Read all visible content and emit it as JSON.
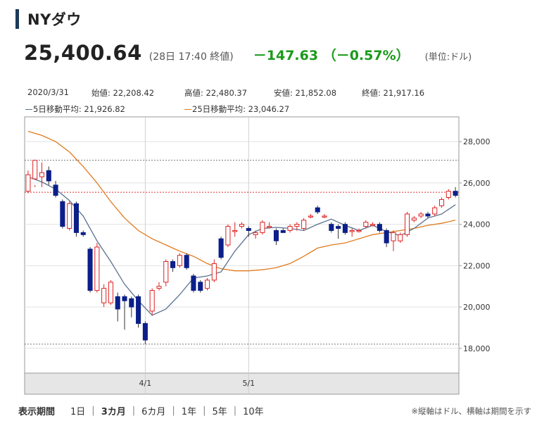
{
  "header": {
    "title": "NYダウ"
  },
  "quote": {
    "price": "25,400.64",
    "date_label": "(28日 17:40 終値)",
    "change": "－147.63 （－0.57%）",
    "unit": "(単位:ドル)"
  },
  "info": {
    "date": "2020/3/31",
    "open": "始値: 22,208.42",
    "high": "高値: 22,480.37",
    "low": "安値: 21,852.08",
    "close": "終値: 21,917.16",
    "ma5": "5日移動平均: 21,926.82",
    "ma25": "25日移動平均: 23,046.27"
  },
  "period": {
    "label": "表示期間",
    "options": [
      "1日",
      "3カ月",
      "6カ月",
      "1年",
      "5年",
      "10年"
    ],
    "selected_index": 1
  },
  "note": "※縦軸はドル、横軸は期間を示す",
  "colors": {
    "up": "#dd2222",
    "down": "#0b1f8a",
    "ma5": "#5b7290",
    "ma25": "#e07a1e",
    "change": "#1a9a1a"
  },
  "chart_data": {
    "type": "candlestick",
    "x_ticks": [
      "4/1",
      "5/1"
    ],
    "y_ticks": [
      "18,000",
      "20,000",
      "22,000",
      "24,000",
      "26,000",
      "28,000"
    ],
    "ylim": [
      16800,
      29200
    ],
    "ref_lines": [
      27100,
      25550,
      18200
    ],
    "candles": [
      [
        25600,
        26400,
        25500,
        26600
      ],
      [
        26200,
        27100,
        25800,
        25900
      ],
      [
        26300,
        26500,
        27000,
        25800
      ],
      [
        26600,
        26100,
        26800,
        25900
      ],
      [
        25900,
        25400,
        26100,
        25300
      ],
      [
        25100,
        23900,
        25200,
        23800
      ],
      [
        23800,
        25000,
        25100,
        23700
      ],
      [
        25000,
        23600,
        25100,
        23400
      ],
      [
        23600,
        23500,
        23700,
        23400
      ],
      [
        22800,
        20800,
        22900,
        20700
      ],
      [
        20800,
        22900,
        23100,
        20700
      ],
      [
        20200,
        20900,
        21100,
        20000
      ],
      [
        20200,
        21200,
        21300,
        20100
      ],
      [
        20500,
        19900,
        20700,
        19300
      ],
      [
        20500,
        20300,
        20600,
        18900
      ],
      [
        20400,
        20000,
        20500,
        19500
      ],
      [
        20500,
        19200,
        20600,
        19000
      ],
      [
        19200,
        18400,
        19300,
        18200
      ],
      [
        19800,
        20800,
        20900,
        19600
      ],
      [
        20900,
        21000,
        21200,
        20800
      ],
      [
        21200,
        22200,
        22300,
        21000
      ],
      [
        22200,
        21900,
        22300,
        21700
      ],
      [
        22000,
        22500,
        22600,
        21900
      ],
      [
        22500,
        21900,
        22600,
        21800
      ],
      [
        21500,
        20800,
        21600,
        20700
      ],
      [
        21200,
        20800,
        21300,
        20700
      ],
      [
        20900,
        21300,
        21400,
        20800
      ],
      [
        21300,
        22100,
        22300,
        21200
      ],
      [
        23300,
        22400,
        23400,
        22300
      ],
      [
        23000,
        23900,
        24000,
        22900
      ],
      [
        23700,
        23700,
        24100,
        23400
      ],
      [
        23900,
        24000,
        24100,
        23800
      ],
      [
        23800,
        23700,
        23900,
        23400
      ],
      [
        23500,
        23600,
        23700,
        23300
      ],
      [
        23600,
        24100,
        24200,
        23500
      ],
      [
        23900,
        23900,
        24100,
        23800
      ],
      [
        23700,
        23200,
        23800,
        23000
      ],
      [
        23700,
        23600,
        23800,
        23600
      ],
      [
        23700,
        23900,
        24000,
        23600
      ],
      [
        23900,
        24000,
        24100,
        23700
      ],
      [
        23800,
        24200,
        24300,
        23700
      ],
      [
        24400,
        24400,
        24500,
        24300
      ],
      [
        24800,
        24600,
        24900,
        24500
      ],
      [
        24400,
        24400,
        24500,
        24300
      ],
      [
        24000,
        23700,
        24100,
        23600
      ],
      [
        23900,
        23800,
        24000,
        23300
      ],
      [
        24000,
        23600,
        24100,
        23500
      ],
      [
        23700,
        23700,
        23800,
        23400
      ],
      [
        23700,
        23700,
        23800,
        23600
      ],
      [
        23900,
        24100,
        24200,
        23800
      ],
      [
        24000,
        24000,
        24100,
        23900
      ],
      [
        24000,
        23700,
        24100,
        23600
      ],
      [
        23700,
        23100,
        23800,
        22900
      ],
      [
        23200,
        23600,
        23700,
        22700
      ],
      [
        23200,
        23500,
        23600,
        23100
      ],
      [
        23500,
        24500,
        24600,
        23400
      ],
      [
        24200,
        24300,
        24400,
        24100
      ],
      [
        24400,
        24500,
        24600,
        24300
      ],
      [
        24500,
        24400,
        24600,
        24300
      ],
      [
        24500,
        24800,
        24900,
        24400
      ],
      [
        24900,
        25200,
        25300,
        24800
      ],
      [
        25300,
        25600,
        25700,
        25200
      ],
      [
        25600,
        25400,
        25800,
        25300
      ]
    ],
    "ma5": [
      [
        0,
        26300
      ],
      [
        2,
        26050
      ],
      [
        4,
        25700
      ],
      [
        6,
        25150
      ],
      [
        8,
        24400
      ],
      [
        10,
        23200
      ],
      [
        12,
        22200
      ],
      [
        14,
        21100
      ],
      [
        16,
        20300
      ],
      [
        18,
        19600
      ],
      [
        20,
        19900
      ],
      [
        22,
        20600
      ],
      [
        24,
        21400
      ],
      [
        26,
        21500
      ],
      [
        28,
        21700
      ],
      [
        30,
        22700
      ],
      [
        32,
        23500
      ],
      [
        34,
        23800
      ],
      [
        36,
        23850
      ],
      [
        38,
        23800
      ],
      [
        40,
        23700
      ],
      [
        42,
        24000
      ],
      [
        44,
        24250
      ],
      [
        46,
        23950
      ],
      [
        48,
        23700
      ],
      [
        50,
        23950
      ],
      [
        52,
        23650
      ],
      [
        54,
        23450
      ],
      [
        56,
        23800
      ],
      [
        58,
        24300
      ],
      [
        60,
        24500
      ],
      [
        62,
        24950
      ]
    ],
    "ma25": [
      [
        0,
        28500
      ],
      [
        2,
        28300
      ],
      [
        4,
        28000
      ],
      [
        6,
        27500
      ],
      [
        8,
        26800
      ],
      [
        10,
        26000
      ],
      [
        12,
        25100
      ],
      [
        14,
        24300
      ],
      [
        16,
        23700
      ],
      [
        18,
        23300
      ],
      [
        20,
        23000
      ],
      [
        22,
        22700
      ],
      [
        24,
        22450
      ],
      [
        26,
        22100
      ],
      [
        28,
        21850
      ],
      [
        30,
        21750
      ],
      [
        32,
        21750
      ],
      [
        34,
        21800
      ],
      [
        36,
        21900
      ],
      [
        38,
        22100
      ],
      [
        40,
        22450
      ],
      [
        42,
        22850
      ],
      [
        44,
        23000
      ],
      [
        46,
        23100
      ],
      [
        48,
        23300
      ],
      [
        50,
        23500
      ],
      [
        52,
        23600
      ],
      [
        54,
        23700
      ],
      [
        56,
        23800
      ],
      [
        58,
        23950
      ],
      [
        60,
        24050
      ],
      [
        62,
        24200
      ]
    ]
  }
}
